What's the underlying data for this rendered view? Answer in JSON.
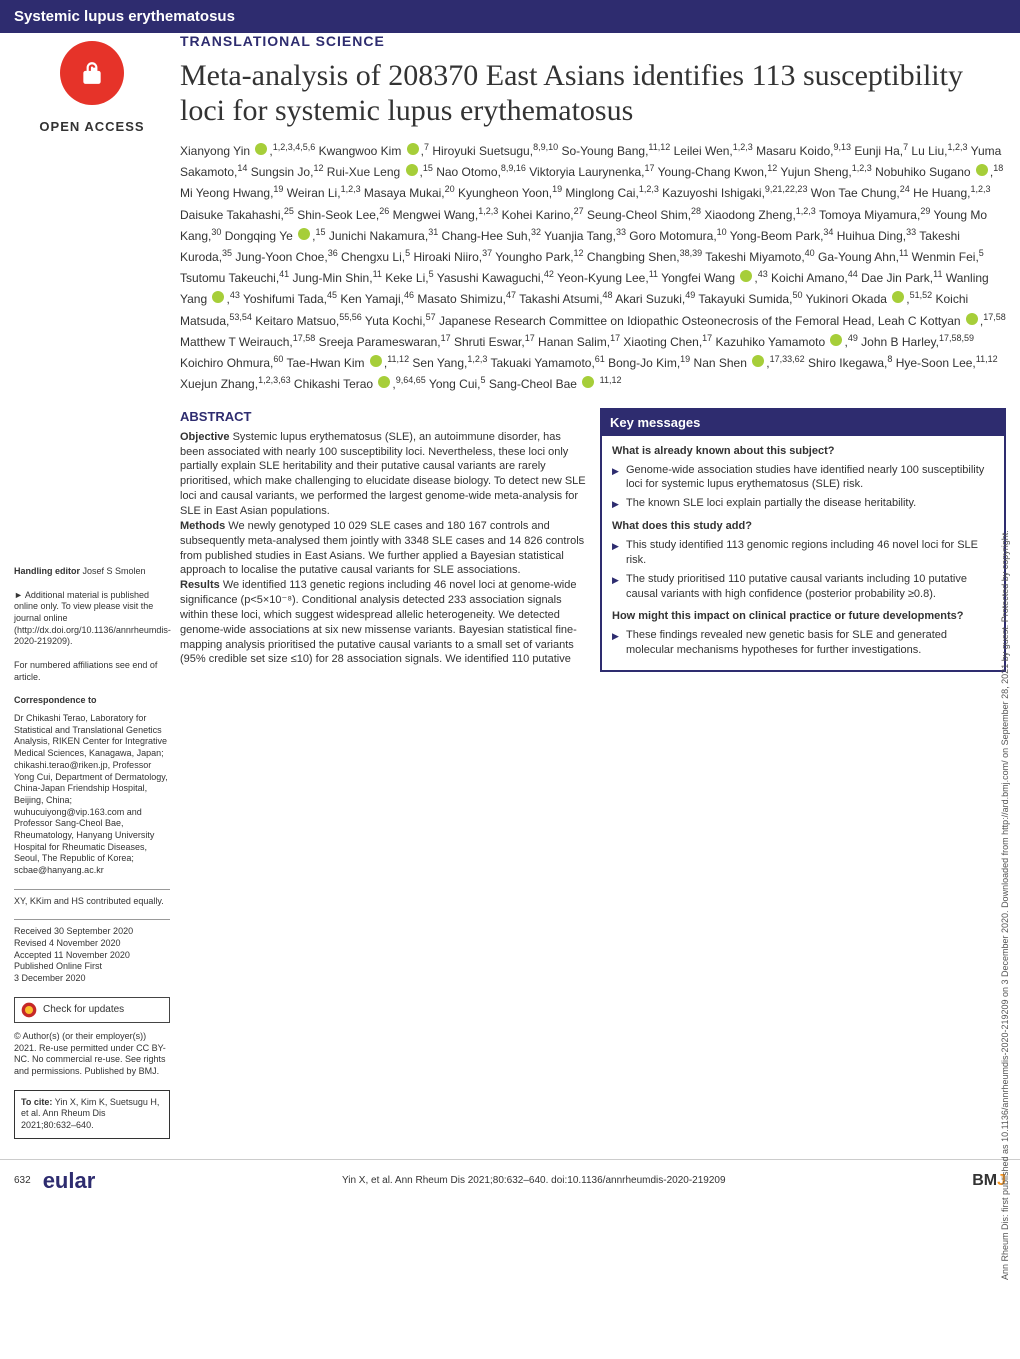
{
  "journal_section": "Systemic lupus erythematosus",
  "open_access_label": "OPEN ACCESS",
  "article_type": "TRANSLATIONAL SCIENCE",
  "title": "Meta-analysis of 208370 East Asians identifies 113 susceptibility loci for systemic lupus erythematosus",
  "authors_html": "Xianyong Yin <span class='orcid'></span>,<sup>1,2,3,4,5,6</sup> Kwangwoo Kim <span class='orcid'></span>,<sup>7</sup> Hiroyuki Suetsugu,<sup>8,9,10</sup> So-Young Bang,<sup>11,12</sup> Leilei Wen,<sup>1,2,3</sup> Masaru Koido,<sup>9,13</sup> Eunji Ha,<sup>7</sup> Lu Liu,<sup>1,2,3</sup> Yuma Sakamoto,<sup>14</sup> Sungsin Jo,<sup>12</sup> Rui-Xue Leng <span class='orcid'></span>,<sup>15</sup> Nao Otomo,<sup>8,9,16</sup> Viktoryia Laurynenka,<sup>17</sup> Young-Chang Kwon,<sup>12</sup> Yujun Sheng,<sup>1,2,3</sup> Nobuhiko Sugano <span class='orcid'></span>,<sup>18</sup> Mi Yeong Hwang,<sup>19</sup> Weiran Li,<sup>1,2,3</sup> Masaya Mukai,<sup>20</sup> Kyungheon Yoon,<sup>19</sup> Minglong Cai,<sup>1,2,3</sup> Kazuyoshi Ishigaki,<sup>9,21,22,23</sup> Won Tae Chung,<sup>24</sup> He Huang,<sup>1,2,3</sup> Daisuke Takahashi,<sup>25</sup> Shin-Seok Lee,<sup>26</sup> Mengwei Wang,<sup>1,2,3</sup> Kohei Karino,<sup>27</sup> Seung-Cheol Shim,<sup>28</sup> Xiaodong Zheng,<sup>1,2,3</sup> Tomoya Miyamura,<sup>29</sup> Young Mo Kang,<sup>30</sup> Dongqing Ye <span class='orcid'></span>,<sup>15</sup> Junichi Nakamura,<sup>31</sup> Chang-Hee Suh,<sup>32</sup> Yuanjia Tang,<sup>33</sup> Goro Motomura,<sup>10</sup> Yong-Beom Park,<sup>34</sup> Huihua Ding,<sup>33</sup> Takeshi Kuroda,<sup>35</sup> Jung-Yoon Choe,<sup>36</sup> Chengxu Li,<sup>5</sup> Hiroaki Niiro,<sup>37</sup> Youngho Park,<sup>12</sup> Changbing Shen,<sup>38,39</sup> Takeshi Miyamoto,<sup>40</sup> Ga-Young Ahn,<sup>11</sup> Wenmin Fei,<sup>5</sup> Tsutomu Takeuchi,<sup>41</sup> Jung-Min Shin,<sup>11</sup> Keke Li,<sup>5</sup> Yasushi Kawaguchi,<sup>42</sup> Yeon-Kyung Lee,<sup>11</sup> Yongfei Wang <span class='orcid'></span>,<sup>43</sup> Koichi Amano,<sup>44</sup> Dae Jin Park,<sup>11</sup> Wanling Yang <span class='orcid'></span>,<sup>43</sup> Yoshifumi Tada,<sup>45</sup> Ken Yamaji,<sup>46</sup> Masato Shimizu,<sup>47</sup> Takashi Atsumi,<sup>48</sup> Akari Suzuki,<sup>49</sup> Takayuki Sumida,<sup>50</sup> Yukinori Okada <span class='orcid'></span>,<sup>51,52</sup> Koichi Matsuda,<sup>53,54</sup> Keitaro Matsuo,<sup>55,56</sup> Yuta Kochi,<sup>57</sup> Japanese Research Committee on Idiopathic Osteonecrosis of the Femoral Head, Leah C Kottyan <span class='orcid'></span>,<sup>17,58</sup> Matthew T Weirauch,<sup>17,58</sup> Sreeja Parameswaran,<sup>17</sup> Shruti Eswar,<sup>17</sup> Hanan Salim,<sup>17</sup> Xiaoting Chen,<sup>17</sup> Kazuhiko Yamamoto <span class='orcid'></span>,<sup>49</sup> John B Harley,<sup>17,58,59</sup> Koichiro Ohmura,<sup>60</sup> Tae-Hwan Kim <span class='orcid'></span>,<sup>11,12</sup> Sen Yang,<sup>1,2,3</sup> Takuaki Yamamoto,<sup>61</sup> Bong-Jo Kim,<sup>19</sup> Nan Shen <span class='orcid'></span>,<sup>17,33,62</sup> Shiro Ikegawa,<sup>8</sup> Hye-Soon Lee,<sup>11,12</sup> Xuejun Zhang,<sup>1,2,3,63</sup> Chikashi Terao <span class='orcid'></span>,<sup>9,64,65</sup> Yong Cui,<sup>5</sup> Sang-Cheol Bae <span class='orcid'></span> <sup>11,12</sup>",
  "sidebar": {
    "handling_editor_label": "Handling editor",
    "handling_editor": "Josef S Smolen",
    "supplementary": "► Additional material is published online only. To view please visit the journal online (http://dx.doi.org/10.1136/annrheumdis-2020-219209).",
    "affiliations_note": "For numbered affiliations see end of article.",
    "correspondence_label": "Correspondence to",
    "correspondence": "Dr Chikashi Terao, Laboratory for Statistical and Translational Genetics Analysis, RIKEN Center for Integrative Medical Sciences, Kanagawa, Japan; chikashi.terao@riken.jp, Professor Yong Cui, Department of Dermatology, China-Japan Friendship Hospital, Beijing, China; wuhucuiyong@vip.163.com and Professor Sang-Cheol Bae, Rheumatology, Hanyang University Hospital for Rheumatic Diseases, Seoul, The Republic of Korea; scbae@hanyang.ac.kr",
    "equal_contrib": "XY, KKim and HS contributed equally.",
    "dates": "Received 30 September 2020\nRevised 4 November 2020\nAccepted 11 November 2020\nPublished Online First\n3 December 2020",
    "check_updates": "Check for updates",
    "license": "© Author(s) (or their employer(s)) 2021. Re-use permitted under CC BY-NC. No commercial re-use. See rights and permissions. Published by BMJ.",
    "cite_label": "To cite:",
    "cite": "Yin X, Kim K, Suetsugu H, et al. Ann Rheum Dis 2021;80:632–640."
  },
  "abstract": {
    "heading": "ABSTRACT",
    "objective_label": "Objective",
    "objective": "Systemic lupus erythematosus (SLE), an autoimmune disorder, has been associated with nearly 100 susceptibility loci. Nevertheless, these loci only partially explain SLE heritability and their putative causal variants are rarely prioritised, which make challenging to elucidate disease biology. To detect new SLE loci and causal variants, we performed the largest genome-wide meta-analysis for SLE in East Asian populations.",
    "methods_label": "Methods",
    "methods": "We newly genotyped 10 029 SLE cases and 180 167 controls and subsequently meta-analysed them jointly with 3348 SLE cases and 14 826 controls from published studies in East Asians. We further applied a Bayesian statistical approach to localise the putative causal variants for SLE associations.",
    "results_label": "Results",
    "results": "We identified 113 genetic regions including 46 novel loci at genome-wide significance (p<5×10⁻⁸). Conditional analysis detected 233 association signals within these loci, which suggest widespread allelic heterogeneity. We detected genome-wide associations at six new missense variants. Bayesian statistical fine-mapping analysis prioritised the putative causal variants to a small set of variants (95% credible set size ≤10) for 28 association signals. We identified 110 putative"
  },
  "keybox": {
    "title": "Key messages",
    "q1": "What is already known about this subject?",
    "q1_items": [
      "Genome-wide association studies have identified nearly 100 susceptibility loci for systemic lupus erythematosus (SLE) risk.",
      "The known SLE loci explain partially the disease heritability."
    ],
    "q2": "What does this study add?",
    "q2_items": [
      "This study identified 113 genomic regions including 46 novel loci for SLE risk.",
      "The study prioritised 110 putative causal variants including 10 putative causal variants with high confidence (posterior probability ≥0.8)."
    ],
    "q3": "How might this impact on clinical practice or future developments?",
    "q3_items": [
      "These findings revealed new genetic basis for SLE and generated molecular mechanisms hypotheses for further investigations."
    ]
  },
  "footer": {
    "page": "632",
    "eular": "eular",
    "citation": "Yin X, et al. Ann Rheum Dis 2021;80:632–640. doi:10.1136/annrheumdis-2020-219209",
    "bmj": "BMJ"
  },
  "side_text": "Ann Rheum Dis: first published as 10.1136/annrheumdis-2020-219209 on 3 December 2020. Downloaded from http://ard.bmj.com/ on September 28, 2021 by guest. Protected by copyright.",
  "colors": {
    "brand": "#2e2c6f",
    "accent": "#e63329",
    "orcid": "#a6ce39"
  }
}
